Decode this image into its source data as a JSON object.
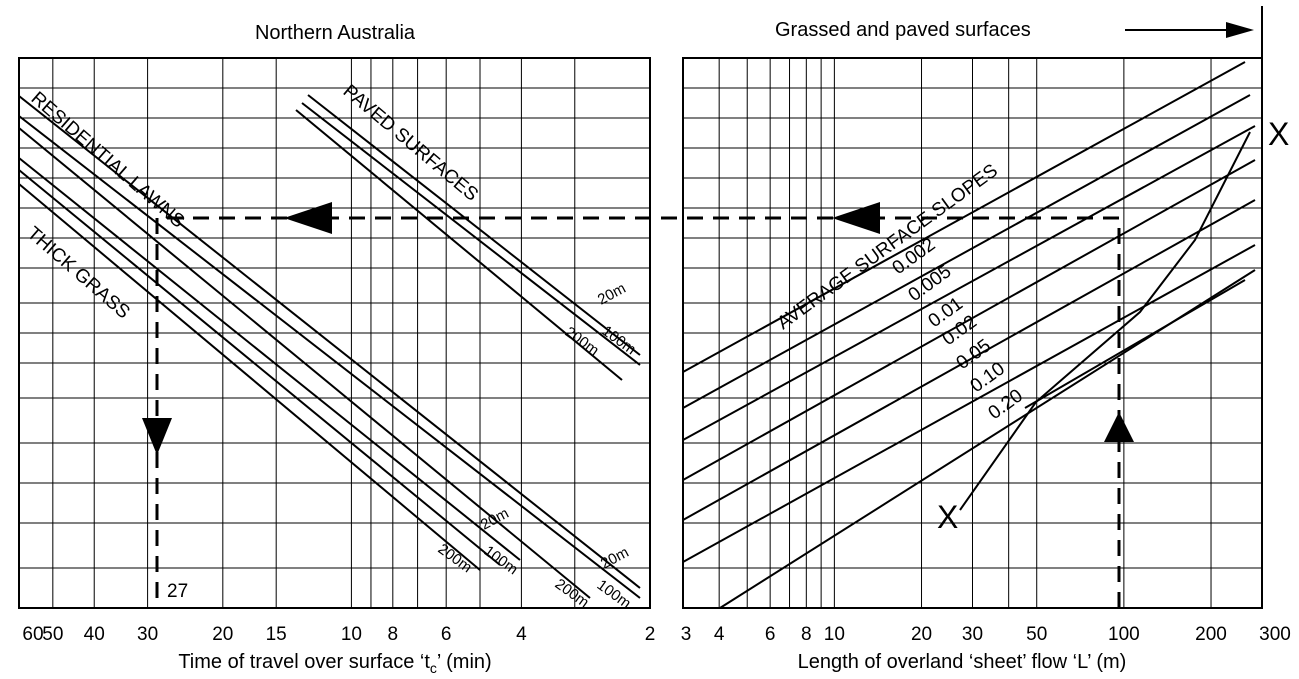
{
  "chart_data": [
    {
      "type": "line",
      "panel": "left",
      "title": "Northern Australia",
      "xlabel_prefix": "Time of travel over surface ‘t",
      "xlabel_sub": "c",
      "xlabel_suffix": "’ (min)",
      "x_ticks": [
        "60",
        "50",
        "40",
        "30",
        "20",
        "15",
        "10",
        "8",
        "6",
        "4",
        "2"
      ],
      "x_tick_values": [
        60,
        50,
        40,
        30,
        20,
        15,
        10,
        8,
        6,
        4,
        2
      ],
      "xlim": [
        60,
        2
      ],
      "x_scale": "log",
      "y_scale": "log",
      "grid": true,
      "groups": [
        {
          "name": "PAVED SURFACES",
          "lines": [
            "20m",
            "100m",
            "200m"
          ]
        },
        {
          "name": "RESIDENTIAL LAWNS",
          "lines": [
            "20m",
            "100m",
            "200m"
          ]
        },
        {
          "name": "THICK GRASS",
          "lines": [
            "20m",
            "100m",
            "200m"
          ]
        }
      ],
      "result_label": "27",
      "result_value": 27
    },
    {
      "type": "line",
      "panel": "right",
      "title": "Grassed and paved surfaces",
      "xlabel": "Length of overland ‘sheet’ flow ‘L’ (m)",
      "x_ticks": [
        "3",
        "4",
        "6",
        "8",
        "10",
        "20",
        "30",
        "50",
        "100",
        "200",
        "300"
      ],
      "x_tick_values": [
        3,
        4,
        6,
        8,
        10,
        20,
        30,
        50,
        100,
        200,
        300
      ],
      "xlim": [
        3,
        300
      ],
      "x_scale": "log",
      "y_scale": "log",
      "grid": true,
      "slope_group_label": "AVERAGE SURFACE SLOPES",
      "slopes": [
        "0.002",
        "0.005",
        "0.01",
        "0.02",
        "0.05",
        "0.10",
        "0.20"
      ],
      "turning_line_label": "X",
      "example_L": 100
    }
  ]
}
